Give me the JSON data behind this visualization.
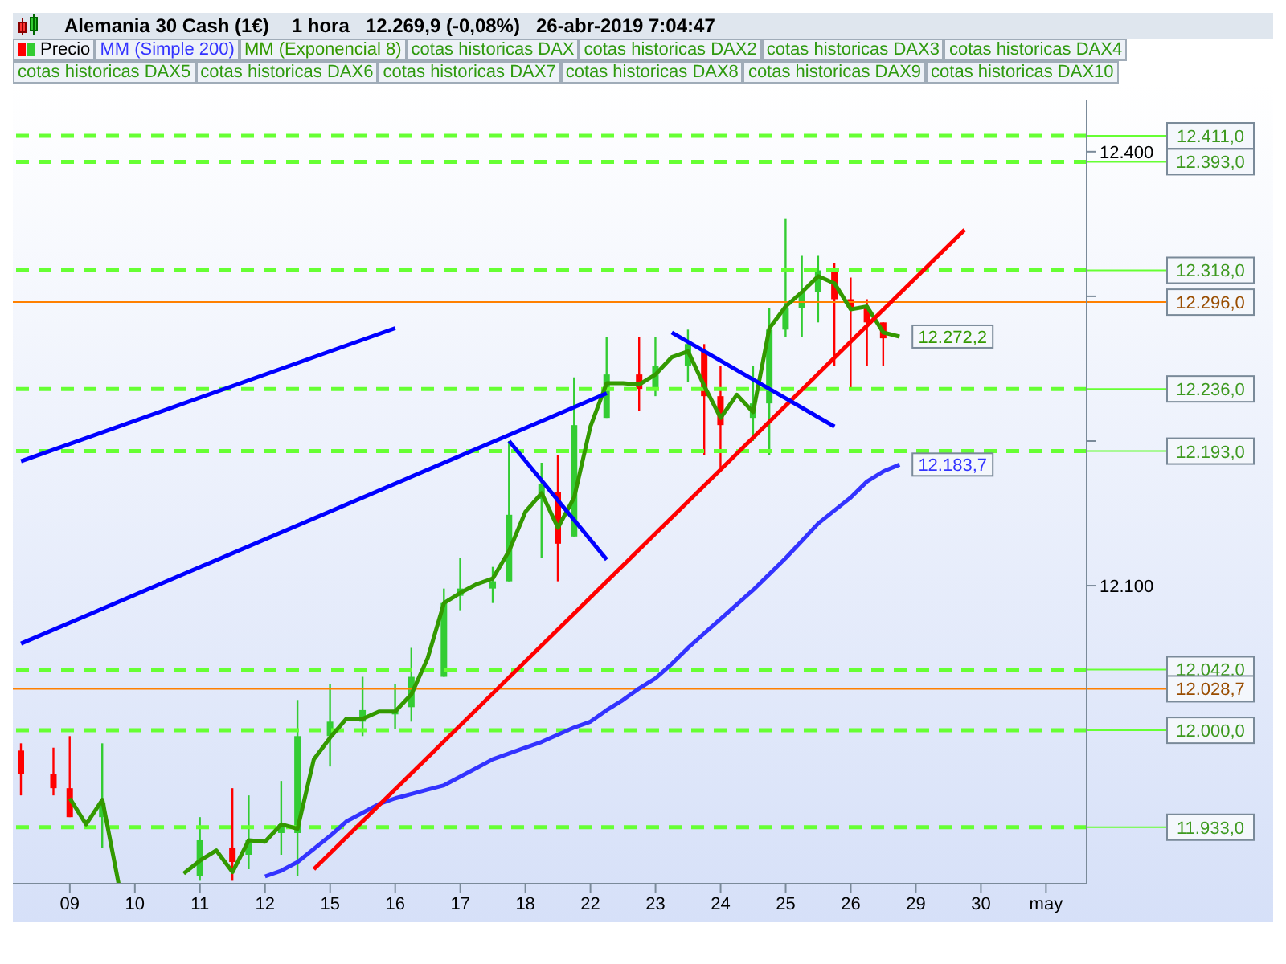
{
  "chart_data": {
    "type": "candlestick",
    "title": "Alemania 30 Cash (1€)",
    "subtitle": "1 hora   12.269,9 (-0,08%)   26-abr-2019 7:04:47",
    "legend": "top",
    "grid": false,
    "marker": "none",
    "line_style": "solid",
    "categories": [
      null,
      null,
      null,
      "09",
      null,
      null,
      null,
      "10",
      null,
      null,
      null,
      "11",
      null,
      null,
      null,
      "12",
      null,
      null,
      null,
      "15",
      null,
      null,
      null,
      "16",
      null,
      null,
      null,
      "17",
      null,
      null,
      null,
      "18",
      null,
      null,
      null,
      "22",
      null,
      null,
      null,
      "23",
      null,
      null,
      null,
      "24",
      null,
      null,
      null,
      "25",
      null,
      null,
      null,
      "26",
      null,
      null,
      null,
      "29",
      null,
      null,
      null,
      "30",
      null,
      null,
      null,
      "may",
      null,
      null
    ],
    "ylim": [
      11894,
      12436
    ],
    "yticks": [
      {
        "value": 12100,
        "label": "12.100"
      },
      {
        "value": 12200,
        "label": null
      },
      {
        "value": 12300,
        "label": null
      },
      {
        "value": 12400,
        "label": "12.400"
      }
    ],
    "series": [
      {
        "name": "Precio",
        "color": "#000000",
        "ohlc": [
          [
            11986,
            11991,
            11955,
            11970
          ],
          null,
          [
            11970,
            11988,
            11955,
            11960
          ],
          [
            11960,
            11996,
            11940,
            11940
          ],
          null,
          [
            11940,
            11991,
            11919,
            11950
          ],
          null,
          null,
          null,
          null,
          null,
          [
            11899,
            11940,
            11896,
            11924
          ],
          null,
          [
            11919,
            11960,
            11896,
            11909
          ],
          [
            11914,
            11955,
            11904,
            11924
          ],
          null,
          [
            11929,
            11965,
            11914,
            11935
          ],
          [
            11929,
            12021,
            11899,
            11996
          ],
          null,
          [
            11996,
            12032,
            11975,
            12006
          ],
          null,
          [
            12006,
            12037,
            11996,
            12014
          ],
          null,
          [
            12011,
            12032,
            12001,
            12014
          ],
          [
            12016,
            12057,
            12006,
            12037
          ],
          null,
          [
            12037,
            12098,
            12037,
            12088
          ],
          [
            12093,
            12119,
            12083,
            12098
          ],
          null,
          [
            12098,
            12113,
            12088,
            12103
          ],
          [
            12103,
            12200,
            12103,
            12149
          ],
          null,
          [
            12160,
            12185,
            12119,
            12170
          ],
          [
            12165,
            12190,
            12103,
            12129
          ],
          [
            12134,
            12244,
            12134,
            12211
          ],
          null,
          [
            12216,
            12272,
            12216,
            12246
          ],
          null,
          [
            12246,
            12272,
            12221,
            12236
          ],
          [
            12236,
            12272,
            12231,
            12252
          ],
          null,
          [
            12252,
            12277,
            12241,
            12267
          ],
          [
            12262,
            12267,
            12190,
            12231
          ],
          [
            12231,
            12252,
            12180,
            12211
          ],
          null,
          [
            12216,
            12252,
            12200,
            12226
          ],
          [
            12226,
            12292,
            12190,
            12277
          ],
          [
            12277,
            12354,
            12272,
            12292
          ],
          [
            12292,
            12328,
            12272,
            12303
          ],
          [
            12303,
            12328,
            12282,
            12318
          ],
          [
            12318,
            12323,
            12252,
            12298
          ],
          [
            12298,
            12313,
            12236,
            12292
          ],
          [
            12292,
            12298,
            12252,
            12282
          ],
          [
            12282,
            12282,
            12252,
            12271
          ],
          null,
          null,
          null,
          null,
          null,
          null,
          null,
          null,
          null,
          null,
          null,
          null
        ],
        "colors": [
          "#ff0000",
          null,
          "#ff0000",
          "#ff0000",
          null,
          "#33cc33",
          null,
          null,
          null,
          null,
          null,
          "#33cc33",
          null,
          "#ff0000",
          "#33cc33",
          null,
          "#33cc33",
          "#33cc33",
          null,
          "#33cc33",
          null,
          "#33cc33",
          null,
          "#33cc33",
          "#33cc33",
          null,
          "#33cc33",
          "#33cc33",
          null,
          "#33cc33",
          "#33cc33",
          null,
          "#33cc33",
          "#ff0000",
          "#33cc33",
          null,
          "#33cc33",
          null,
          "#ff0000",
          "#33cc33",
          null,
          "#33cc33",
          "#ff0000",
          "#ff0000",
          null,
          "#33cc33",
          "#33cc33",
          "#33cc33",
          "#33cc33",
          "#33cc33",
          "#ff0000",
          "#ff0000",
          "#ff0000",
          "#ff0000",
          null,
          null,
          null,
          null,
          null,
          null,
          null,
          null,
          null,
          null,
          null,
          null
        ]
      },
      {
        "type": "line",
        "name": "MM (Simple 200)",
        "color": "#3333ff",
        "value_labels": [
          null,
          null,
          null,
          null,
          null,
          null,
          null,
          null,
          null,
          null,
          null,
          null,
          null,
          null,
          null,
          null,
          null,
          null,
          null,
          null,
          null,
          null,
          null,
          null,
          null,
          null,
          null,
          null,
          null,
          null,
          null,
          null,
          null,
          null,
          null,
          null,
          null,
          null,
          null,
          null,
          null,
          null,
          null,
          null,
          null,
          null,
          null,
          null,
          null,
          null,
          null,
          null,
          null,
          null,
          "12.183,7",
          null,
          null,
          null,
          null,
          null,
          null,
          null,
          null,
          null,
          null,
          null
        ],
        "values": [
          null,
          null,
          null,
          null,
          null,
          null,
          null,
          null,
          null,
          null,
          null,
          null,
          null,
          null,
          null,
          11899,
          11903,
          11909,
          11918,
          11927,
          11937,
          11943,
          11949,
          11953,
          11956,
          11959,
          11962,
          11968,
          11974,
          11980,
          11984,
          11988,
          11992,
          11997,
          12002,
          12006,
          12014,
          12021,
          12029,
          12036,
          12046,
          12057,
          12067,
          12077,
          12087,
          12097,
          12108,
          12119,
          12131,
          12143,
          12152,
          12161,
          12172,
          12179,
          12183.7,
          null,
          null,
          null,
          null,
          null,
          null,
          null,
          null,
          null,
          null,
          null
        ]
      },
      {
        "type": "line",
        "name": "MM (Exponencial 8)",
        "color": "#339900",
        "values": [
          null,
          null,
          null,
          11953,
          11935,
          11952,
          11894,
          null,
          null,
          null,
          11901,
          11910,
          11917,
          11902,
          11924,
          11923,
          11935,
          11932,
          11980,
          11995,
          12008,
          12008,
          12013,
          12013,
          12025,
          12050,
          12088,
          12095,
          12101,
          12105,
          12124,
          12151,
          12164,
          12140,
          12161,
          12210,
          12240,
          12240,
          12239,
          12246,
          12258,
          12262,
          12238,
          12216,
          12232,
          12220,
          12278,
          12293,
          12303,
          12314,
          12309,
          12291,
          12293,
          12275,
          12272.2,
          null,
          null,
          null,
          null,
          null,
          null,
          null,
          null,
          null,
          null,
          null
        ],
        "value_labels": [
          null,
          null,
          null,
          null,
          null,
          null,
          null,
          null,
          null,
          null,
          null,
          null,
          null,
          null,
          null,
          null,
          null,
          null,
          null,
          null,
          null,
          null,
          null,
          null,
          null,
          null,
          null,
          null,
          null,
          null,
          null,
          null,
          null,
          null,
          null,
          null,
          null,
          null,
          null,
          null,
          null,
          null,
          null,
          null,
          null,
          null,
          null,
          null,
          null,
          null,
          null,
          null,
          null,
          null,
          "12.272,2",
          null,
          null,
          null,
          null,
          null,
          null,
          null,
          null,
          null,
          null,
          null
        ],
        "line_style": "solid"
      },
      {
        "type": "line",
        "color": "#ff0000",
        "values": [
          null,
          null,
          null,
          null,
          null,
          null,
          null,
          null,
          null,
          null,
          null,
          null,
          null,
          null,
          null,
          null,
          null,
          null,
          11904,
          null,
          null,
          null,
          null,
          null,
          null,
          null,
          null,
          null,
          null,
          null,
          null,
          null,
          null,
          null,
          null,
          null,
          null,
          null,
          null,
          null,
          null,
          null,
          null,
          null,
          null,
          null,
          null,
          null,
          null,
          null,
          null,
          null,
          null,
          null,
          null,
          null,
          null,
          null,
          12346,
          null,
          null,
          null,
          null,
          null,
          null,
          null
        ]
      },
      {
        "type": "line",
        "color": "#0000ff",
        "values": [
          12186,
          null,
          null,
          null,
          null,
          null,
          null,
          null,
          null,
          null,
          null,
          null,
          null,
          null,
          null,
          null,
          null,
          null,
          null,
          null,
          null,
          null,
          null,
          12278,
          null,
          null,
          null,
          null,
          null,
          null,
          null,
          null,
          null,
          null,
          null,
          null,
          null,
          null,
          null,
          null,
          null,
          null,
          null,
          null,
          null,
          null,
          null,
          null,
          null,
          null,
          null,
          null,
          null,
          null,
          null,
          null,
          null,
          null,
          null,
          null,
          null,
          null,
          null,
          null,
          null,
          null
        ]
      },
      {
        "type": "line",
        "color": "#0000ff",
        "values": [
          12060,
          null,
          null,
          null,
          null,
          null,
          null,
          null,
          null,
          null,
          null,
          null,
          null,
          null,
          null,
          null,
          null,
          null,
          null,
          null,
          null,
          null,
          null,
          null,
          null,
          null,
          null,
          null,
          null,
          null,
          null,
          null,
          null,
          null,
          null,
          null,
          12233,
          null,
          null,
          null,
          null,
          null,
          null,
          null,
          null,
          null,
          null,
          null,
          null,
          null,
          null,
          null,
          null,
          null,
          null,
          null,
          null,
          null,
          null,
          null,
          null,
          null,
          null,
          null,
          null,
          null
        ]
      },
      {
        "type": "line",
        "color": "#0000ff",
        "values": [
          null,
          null,
          null,
          null,
          null,
          null,
          null,
          null,
          null,
          null,
          null,
          null,
          null,
          null,
          null,
          null,
          null,
          null,
          null,
          null,
          null,
          null,
          null,
          null,
          null,
          null,
          null,
          null,
          null,
          null,
          12200,
          null,
          null,
          null,
          null,
          null,
          12118,
          null,
          null,
          null,
          null,
          null,
          null,
          null,
          null,
          null,
          null,
          null,
          null,
          null,
          null,
          null,
          null,
          null,
          null,
          null,
          null,
          null,
          null,
          null,
          null,
          null,
          null,
          null,
          null,
          null
        ]
      },
      {
        "type": "line",
        "color": "#0000ff",
        "values": [
          null,
          null,
          null,
          null,
          null,
          null,
          null,
          null,
          null,
          null,
          null,
          null,
          null,
          null,
          null,
          null,
          null,
          null,
          null,
          null,
          null,
          null,
          null,
          null,
          null,
          null,
          null,
          null,
          null,
          null,
          null,
          null,
          null,
          null,
          null,
          null,
          null,
          null,
          null,
          null,
          12275,
          null,
          null,
          null,
          null,
          null,
          null,
          null,
          null,
          null,
          12210,
          null,
          null,
          null,
          null,
          null,
          null,
          null,
          null,
          null,
          null,
          null,
          null,
          null,
          null,
          null
        ]
      }
    ],
    "ref_lines": [
      {
        "axis": "y",
        "value": 12411,
        "label": "12.411,0",
        "color": "#66ff33",
        "line_style": "dashed"
      },
      {
        "axis": "y",
        "value": 12393,
        "label": "12.393,0",
        "color": "#66ff33",
        "line_style": "dashed"
      },
      {
        "axis": "y",
        "value": 12318,
        "label": "12.318,0",
        "color": "#66ff33",
        "line_style": "dashed"
      },
      {
        "axis": "y",
        "value": 12296,
        "label": "12.296,0",
        "color": "#ff8000",
        "line_style": "solid"
      },
      {
        "axis": "y",
        "value": 12236,
        "label": "12.236,0",
        "color": "#66ff33",
        "line_style": "dashed"
      },
      {
        "axis": "y",
        "value": 12193,
        "label": "12.193,0",
        "color": "#66ff33",
        "line_style": "dashed"
      },
      {
        "axis": "y",
        "value": 12042,
        "label": "12.042,0",
        "color": "#66ff33",
        "line_style": "dashed"
      },
      {
        "axis": "y",
        "value": 12028.7,
        "label": "12.028,7",
        "color": "#ff8000",
        "line_style": "solid"
      },
      {
        "axis": "y",
        "value": 12000,
        "label": "12.000,0",
        "color": "#66ff33",
        "line_style": "dashed"
      },
      {
        "axis": "y",
        "value": 11933,
        "label": "11.933,0",
        "color": "#66ff33",
        "line_style": "dashed"
      }
    ],
    "annotations": [
      "cotas historicas DAX",
      "cotas historicas DAX2",
      "cotas historicas DAX3",
      "cotas historicas DAX4",
      "cotas historicas DAX5",
      "cotas historicas DAX6",
      "cotas historicas DAX7",
      "cotas historicas DAX8",
      "cotas historicas DAX9",
      "cotas historicas DAX10"
    ]
  }
}
